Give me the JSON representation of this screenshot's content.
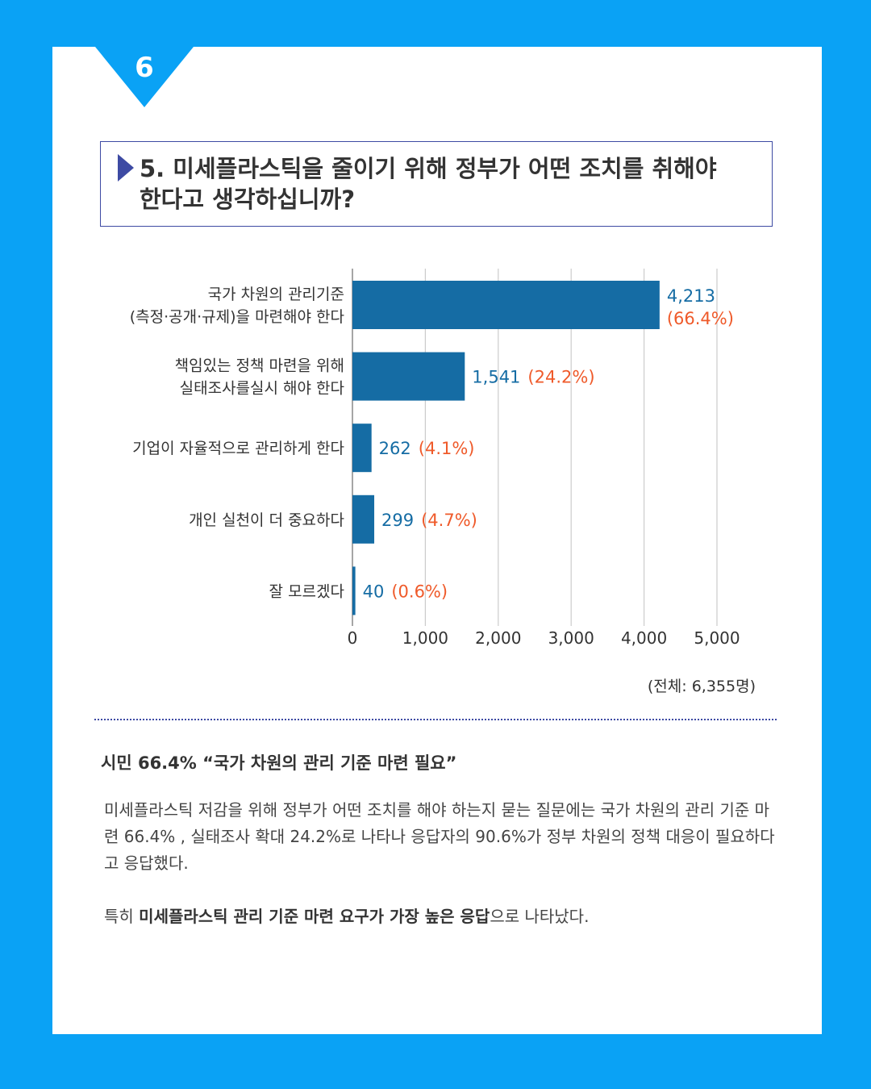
{
  "page_number": "6",
  "question": {
    "line1": "5. 미세플라스틱을 줄이기 위해 정부가 어떤 조치를 취해야",
    "line2": "한다고 생각하십니까?"
  },
  "chart_data": {
    "type": "bar",
    "orientation": "horizontal",
    "categories": [
      [
        "국가 차원의 관리기준",
        "(측정·공개·규제)을 마련해야 한다"
      ],
      [
        "책임있는 정책 마련을 위해",
        "실태조사를실시 해야 한다"
      ],
      [
        "기업이 자율적으로 관리하게 한다"
      ],
      [
        "개인 실천이 더 중요하다"
      ],
      [
        "잘 모르겠다"
      ]
    ],
    "values": [
      4213,
      1541,
      262,
      299,
      40
    ],
    "value_labels": [
      "4,213",
      "1,541",
      "262",
      "299",
      "40"
    ],
    "percent_labels": [
      "(66.4%)",
      "(24.2%)",
      "(4.1%)",
      "(4.7%)",
      "(0.6%)"
    ],
    "xlim": [
      0,
      5000
    ],
    "x_ticks": [
      0,
      1000,
      2000,
      3000,
      4000,
      5000
    ],
    "x_tick_labels": [
      "0",
      "1,000",
      "2,000",
      "3,000",
      "4,000",
      "5,000"
    ],
    "grid": true,
    "colors": {
      "bar": "#156ca4",
      "value_label": "#156ca4",
      "percent_label": "#ef5a2a",
      "grid": "#cccccc"
    }
  },
  "total_note": "(전체: 6,355명)",
  "summary": {
    "title": "시민 66.4% “국가 차원의 관리 기준 마련 필요”",
    "paragraph1": "미세플라스틱 저감을 위해 정부가 어떤 조치를 해야 하는지 묻는 질문에는 국가 차원의 관리 기준 마련 66.4% , 실태조사 확대 24.2%로 나타나 응답자의 90.6%가 정부 차원의 정책 대응이 필요하다고 응답했다.",
    "paragraph2_prefix": "특히 ",
    "paragraph2_bold": "미세플라스틱 관리 기준 마련 요구가 가장 높은 응답",
    "paragraph2_suffix": "으로 나타났다."
  },
  "colors": {
    "background": "#0aa2f5",
    "badge": "#0aa2f5",
    "frame": "#3d4aa3"
  }
}
